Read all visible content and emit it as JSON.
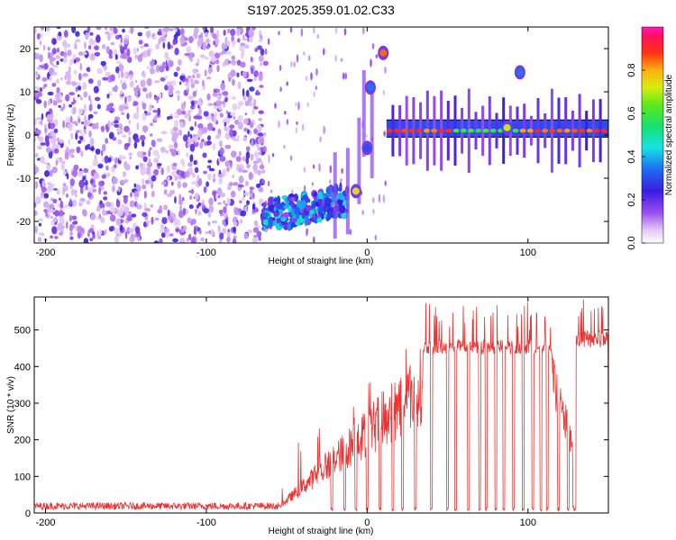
{
  "title": "S197.2025.359.01.02.C33",
  "chart_data": [
    {
      "type": "heatmap",
      "name": "spectrogram",
      "xlabel": "Height of straight line (km)",
      "ylabel": "Frequency (Hz)",
      "xlim": [
        -207,
        150
      ],
      "ylim": [
        -25,
        25
      ],
      "xticks": [
        -200,
        -100,
        0,
        100
      ],
      "yticks": [
        -20,
        -10,
        0,
        10,
        20
      ],
      "colorbar": {
        "label": "Normalized spectral amplitude",
        "range": [
          0,
          1
        ],
        "ticks": [
          0.0,
          0.2,
          0.4,
          0.6,
          0.8
        ]
      },
      "regions": [
        {
          "label": "noise",
          "x_range": [
            -207,
            -63
          ],
          "freq_range": [
            -25,
            25
          ],
          "amplitude": 0.08
        },
        {
          "label": "low-altitude echoes",
          "x_range": [
            -65,
            -12
          ],
          "freq_range": [
            -22,
            -13
          ],
          "amplitude": 0.35
        },
        {
          "label": "line",
          "x_range": [
            12,
            150
          ],
          "freq": 1,
          "amplitude": 0.8
        }
      ],
      "blobs": [
        {
          "x": -7,
          "f": -13,
          "a": 0.75
        },
        {
          "x": 10,
          "f": 19,
          "a": 0.85
        },
        {
          "x": 2,
          "f": 11,
          "a": 0.35
        },
        {
          "x": 0,
          "f": -3,
          "a": 0.3
        },
        {
          "x": 95,
          "f": 14.5,
          "a": 0.35
        },
        {
          "x": 87,
          "f": 1.7,
          "a": 0.7
        }
      ]
    },
    {
      "type": "line",
      "name": "snr",
      "xlabel": "Height of straight line (km)",
      "ylabel": "SNR (10 * v/v)",
      "xlim": [
        -207,
        150
      ],
      "ylim": [
        0,
        590
      ],
      "xticks": [
        -200,
        -100,
        0,
        100
      ],
      "yticks": [
        0,
        100,
        200,
        300,
        400,
        500
      ],
      "color": "#ee3333",
      "segments": [
        {
          "x_range": [
            -207,
            -55
          ],
          "baseline": 15
        },
        {
          "x_range": [
            -55,
            35
          ],
          "from": 20,
          "to": 440
        },
        {
          "x_range": [
            35,
            115
          ],
          "baseline": 450
        },
        {
          "x_range": [
            115,
            128
          ],
          "from": 400,
          "to": 200
        },
        {
          "x_range": [
            130,
            150
          ],
          "baseline": 470
        }
      ],
      "dropouts_x": [
        -22,
        -14,
        -7,
        0,
        8,
        16,
        22,
        30,
        40,
        50,
        55,
        63,
        70,
        74,
        80,
        85,
        91,
        97,
        103,
        108,
        112,
        119,
        125,
        129
      ]
    }
  ]
}
